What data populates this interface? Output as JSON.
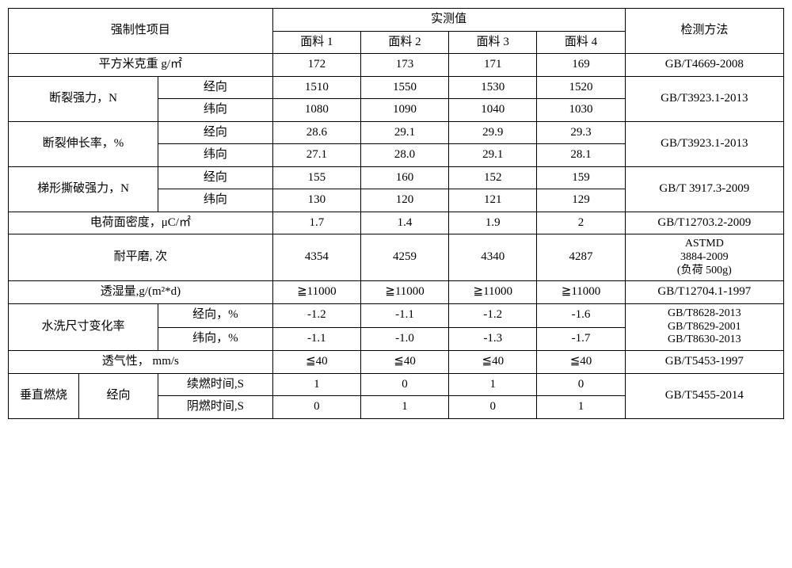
{
  "header": {
    "mandatory": "强制性项目",
    "measured": "实测值",
    "method": "检测方法",
    "fabric1": "面料 1",
    "fabric2": "面料 2",
    "fabric3": "面料 3",
    "fabric4": "面料 4"
  },
  "rows": {
    "weight": {
      "label": "平方米克重 g/㎡",
      "v1": "172",
      "v2": "173",
      "v3": "171",
      "v4": "169",
      "method": "GB/T4669-2008"
    },
    "break_strength": {
      "label": "断裂强力，N",
      "warp": {
        "dir": "经向",
        "v1": "1510",
        "v2": "1550",
        "v3": "1530",
        "v4": "1520"
      },
      "weft": {
        "dir": "纬向",
        "v1": "1080",
        "v2": "1090",
        "v3": "1040",
        "v4": "1030"
      },
      "method": "GB/T3923.1-2013"
    },
    "elongation": {
      "label": "断裂伸长率，%",
      "warp": {
        "dir": "经向",
        "v1": "28.6",
        "v2": "29.1",
        "v3": "29.9",
        "v4": "29.3"
      },
      "weft": {
        "dir": "纬向",
        "v1": "27.1",
        "v2": "28.0",
        "v3": "29.1",
        "v4": "28.1"
      },
      "method": "GB/T3923.1-2013"
    },
    "tear": {
      "label": "梯形撕破强力，N",
      "warp": {
        "dir": "经向",
        "v1": "155",
        "v2": "160",
        "v3": "152",
        "v4": "159"
      },
      "weft": {
        "dir": "纬向",
        "v1": "130",
        "v2": "120",
        "v3": "121",
        "v4": "129"
      },
      "method": "GB/T 3917.3-2009"
    },
    "charge": {
      "label": "电荷面密度，μC/㎡",
      "v1": "1.7",
      "v2": "1.4",
      "v3": "1.9",
      "v4": "2",
      "method": "GB/T12703.2-2009"
    },
    "abrasion": {
      "label": "耐平磨, 次",
      "v1": "4354",
      "v2": "4259",
      "v3": "4340",
      "v4": "4287",
      "method_l1": "ASTMD",
      "method_l2": "3884-2009",
      "method_l3": "(负荷 500g)"
    },
    "vapor": {
      "label": "透湿量,g/(m²*d)",
      "v1": "≧11000",
      "v2": "≧11000",
      "v3": "≧11000",
      "v4": "≧11000",
      "method": "GB/T12704.1-1997"
    },
    "shrink": {
      "label": "水洗尺寸变化率",
      "warp": {
        "dir": "经向，%",
        "v1": "-1.2",
        "v2": "-1.1",
        "v3": "-1.2",
        "v4": "-1.6"
      },
      "weft": {
        "dir": "纬向，%",
        "v1": "-1.1",
        "v2": "-1.0",
        "v3": "-1.3",
        "v4": "-1.7"
      },
      "method_l1": "GB/T8628-2013",
      "method_l2": "GB/T8629-2001",
      "method_l3": "GB/T8630-2013"
    },
    "air": {
      "label": "透气性， mm/s",
      "v1": "≦40",
      "v2": "≦40",
      "v3": "≦40",
      "v4": "≦40",
      "method": "GB/T5453-1997"
    },
    "burn": {
      "label": "垂直燃烧",
      "dir": "经向",
      "after": {
        "label": "续燃时间,S",
        "v1": "1",
        "v2": "0",
        "v3": "1",
        "v4": "0"
      },
      "glow": {
        "label": "阴燃时间,S",
        "v1": "0",
        "v2": "1",
        "v3": "0",
        "v4": "1"
      },
      "method": "GB/T5455-2014"
    }
  },
  "style": {
    "background": "#ffffff",
    "border_color": "#000000",
    "text_color": "#000000",
    "font_size_body": 15,
    "font_size_method_multi": 14
  }
}
